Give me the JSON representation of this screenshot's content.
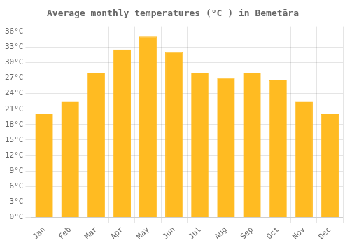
{
  "chart_data": {
    "type": "bar",
    "title": "Average monthly temperatures (°C ) in Bemetāra",
    "categories": [
      "Jan",
      "Feb",
      "Mar",
      "Apr",
      "May",
      "Jun",
      "Jul",
      "Aug",
      "Sep",
      "Oct",
      "Nov",
      "Dec"
    ],
    "values": [
      20,
      22.5,
      28,
      32.5,
      35,
      32,
      28,
      27,
      28,
      26.5,
      22.5,
      20
    ],
    "color": "#FFBB22",
    "ylim": [
      0,
      37
    ],
    "yticks": [
      {
        "value": 0,
        "label": "0°C"
      },
      {
        "value": 3,
        "label": "3°C"
      },
      {
        "value": 6,
        "label": "6°C"
      },
      {
        "value": 9,
        "label": "9°C"
      },
      {
        "value": 12,
        "label": "12°C"
      },
      {
        "value": 15,
        "label": "15°C"
      },
      {
        "value": 18,
        "label": "18°C"
      },
      {
        "value": 21,
        "label": "21°C"
      },
      {
        "value": 24,
        "label": "24°C"
      },
      {
        "value": 27,
        "label": "27°C"
      },
      {
        "value": 30,
        "label": "30°C"
      },
      {
        "value": 33,
        "label": "33°C"
      },
      {
        "value": 36,
        "label": "36°C"
      }
    ],
    "grid": true
  }
}
